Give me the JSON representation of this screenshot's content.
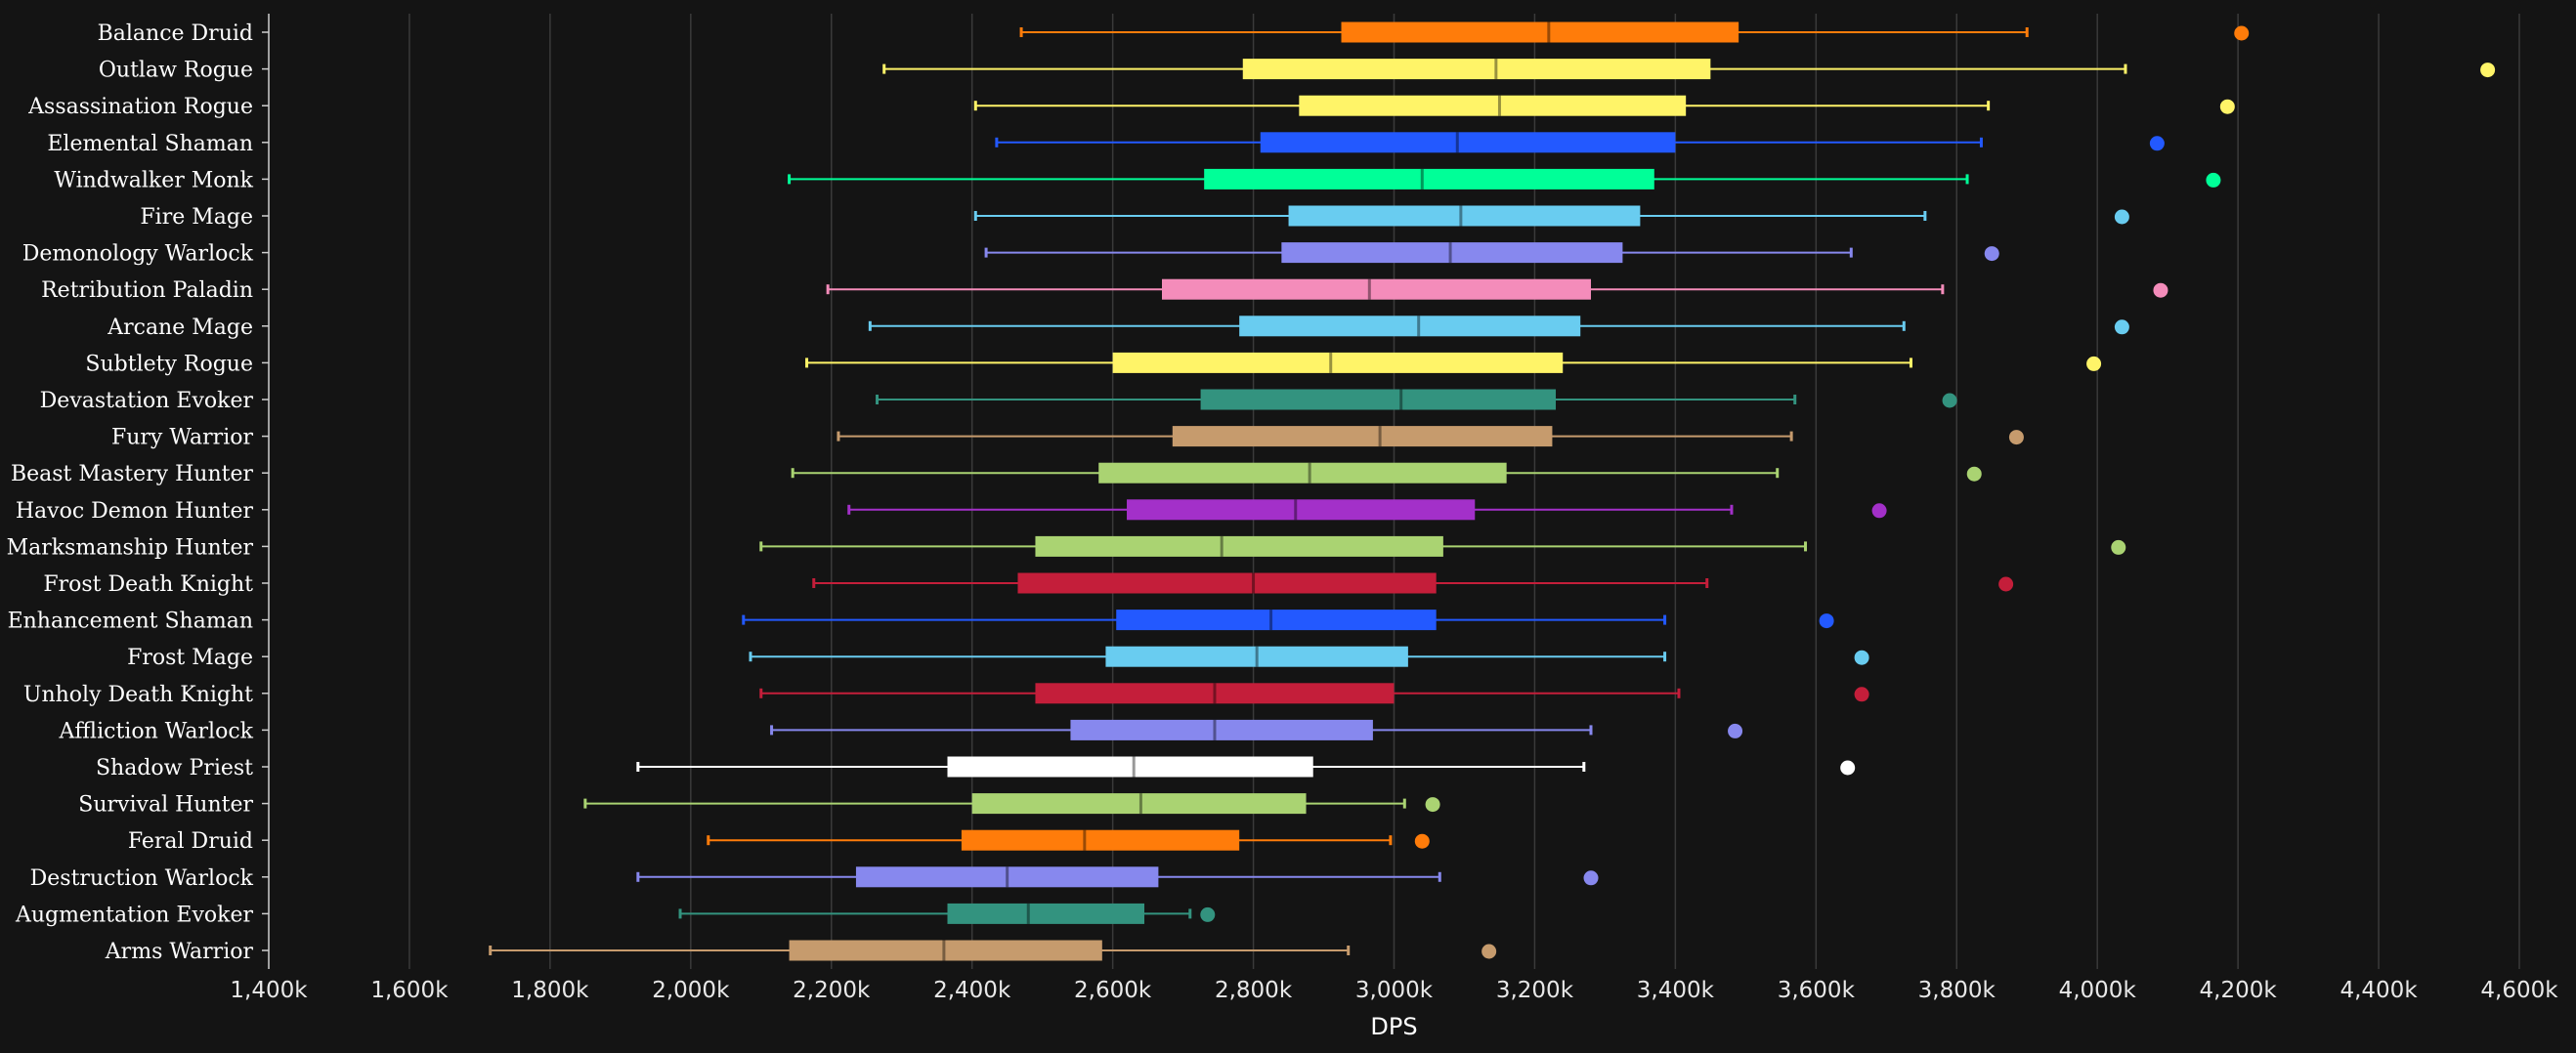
{
  "chart_data": {
    "type": "boxplot",
    "xlabel": "DPS",
    "xlim": [
      1400000,
      4600000
    ],
    "xticks": [
      "1,400k",
      "1,600k",
      "1,800k",
      "2,000k",
      "2,200k",
      "2,400k",
      "2,600k",
      "2,800k",
      "3,000k",
      "3,200k",
      "3,400k",
      "3,600k",
      "3,800k",
      "4,000k",
      "4,200k",
      "4,400k",
      "4,600k"
    ],
    "xtick_values": [
      1400000,
      1600000,
      1800000,
      2000000,
      2200000,
      2400000,
      2600000,
      2800000,
      3000000,
      3200000,
      3400000,
      3600000,
      3800000,
      4000000,
      4200000,
      4400000,
      4600000
    ],
    "grid": "vertical",
    "series": [
      {
        "name": "Balance Druid",
        "color": "#FF7C0A",
        "min": 2470000,
        "q1": 2925000,
        "median": 3220000,
        "q3": 3490000,
        "max": 3900000,
        "outlier": 4205000
      },
      {
        "name": "Outlaw Rogue",
        "color": "#FFF468",
        "min": 2275000,
        "q1": 2785000,
        "median": 3145000,
        "q3": 3450000,
        "max": 4040000,
        "outlier": 4555000
      },
      {
        "name": "Assassination Rogue",
        "color": "#FFF468",
        "min": 2405000,
        "q1": 2865000,
        "median": 3150000,
        "q3": 3415000,
        "max": 3845000,
        "outlier": 4185000
      },
      {
        "name": "Elemental Shaman",
        "color": "#2359FF",
        "min": 2435000,
        "q1": 2810000,
        "median": 3090000,
        "q3": 3400000,
        "max": 3835000,
        "outlier": 4085000
      },
      {
        "name": "Windwalker Monk",
        "color": "#00FF98",
        "min": 2140000,
        "q1": 2730000,
        "median": 3040000,
        "q3": 3370000,
        "max": 3815000,
        "outlier": 4165000
      },
      {
        "name": "Fire Mage",
        "color": "#69CCF0",
        "min": 2405000,
        "q1": 2850000,
        "median": 3095000,
        "q3": 3350000,
        "max": 3755000,
        "outlier": 4035000
      },
      {
        "name": "Demonology Warlock",
        "color": "#8788EE",
        "min": 2420000,
        "q1": 2840000,
        "median": 3080000,
        "q3": 3325000,
        "max": 3650000,
        "outlier": 3850000
      },
      {
        "name": "Retribution Paladin",
        "color": "#F48CBA",
        "min": 2195000,
        "q1": 2670000,
        "median": 2965000,
        "q3": 3280000,
        "max": 3780000,
        "outlier": 4090000
      },
      {
        "name": "Arcane Mage",
        "color": "#69CCF0",
        "min": 2255000,
        "q1": 2780000,
        "median": 3035000,
        "q3": 3265000,
        "max": 3725000,
        "outlier": 4035000
      },
      {
        "name": "Subtlety Rogue",
        "color": "#FFF468",
        "min": 2165000,
        "q1": 2600000,
        "median": 2910000,
        "q3": 3240000,
        "max": 3735000,
        "outlier": 3995000
      },
      {
        "name": "Devastation Evoker",
        "color": "#33937F",
        "min": 2265000,
        "q1": 2725000,
        "median": 3010000,
        "q3": 3230000,
        "max": 3570000,
        "outlier": 3790000
      },
      {
        "name": "Fury Warrior",
        "color": "#C69B6D",
        "min": 2210000,
        "q1": 2685000,
        "median": 2980000,
        "q3": 3225000,
        "max": 3565000,
        "outlier": 3885000
      },
      {
        "name": "Beast Mastery Hunter",
        "color": "#AAD372",
        "min": 2145000,
        "q1": 2580000,
        "median": 2880000,
        "q3": 3160000,
        "max": 3545000,
        "outlier": 3825000
      },
      {
        "name": "Havoc Demon Hunter",
        "color": "#A330C9",
        "min": 2225000,
        "q1": 2620000,
        "median": 2860000,
        "q3": 3115000,
        "max": 3480000,
        "outlier": 3690000
      },
      {
        "name": "Marksmanship Hunter",
        "color": "#AAD372",
        "min": 2100000,
        "q1": 2490000,
        "median": 2755000,
        "q3": 3070000,
        "max": 3585000,
        "outlier": 4030000
      },
      {
        "name": "Frost Death Knight",
        "color": "#C41E3A",
        "min": 2175000,
        "q1": 2465000,
        "median": 2800000,
        "q3": 3060000,
        "max": 3445000,
        "outlier": 3870000
      },
      {
        "name": "Enhancement Shaman",
        "color": "#2359FF",
        "min": 2075000,
        "q1": 2605000,
        "median": 2825000,
        "q3": 3060000,
        "max": 3385000,
        "outlier": 3615000
      },
      {
        "name": "Frost Mage",
        "color": "#69CCF0",
        "min": 2085000,
        "q1": 2590000,
        "median": 2805000,
        "q3": 3020000,
        "max": 3385000,
        "outlier": 3665000
      },
      {
        "name": "Unholy Death Knight",
        "color": "#C41E3A",
        "min": 2100000,
        "q1": 2490000,
        "median": 2745000,
        "q3": 3000000,
        "max": 3405000,
        "outlier": 3665000
      },
      {
        "name": "Affliction Warlock",
        "color": "#8788EE",
        "min": 2115000,
        "q1": 2540000,
        "median": 2745000,
        "q3": 2970000,
        "max": 3280000,
        "outlier": 3485000
      },
      {
        "name": "Shadow Priest",
        "color": "#FFFFFF",
        "min": 1925000,
        "q1": 2365000,
        "median": 2630000,
        "q3": 2885000,
        "max": 3270000,
        "outlier": 3645000
      },
      {
        "name": "Survival Hunter",
        "color": "#AAD372",
        "min": 1850000,
        "q1": 2400000,
        "median": 2640000,
        "q3": 2875000,
        "max": 3015000,
        "outlier": 3055000
      },
      {
        "name": "Feral Druid",
        "color": "#FF7C0A",
        "min": 2025000,
        "q1": 2385000,
        "median": 2560000,
        "q3": 2780000,
        "max": 2995000,
        "outlier": 3040000
      },
      {
        "name": "Destruction Warlock",
        "color": "#8788EE",
        "min": 1925000,
        "q1": 2235000,
        "median": 2450000,
        "q3": 2665000,
        "max": 3065000,
        "outlier": 3280000
      },
      {
        "name": "Augmentation Evoker",
        "color": "#33937F",
        "min": 1985000,
        "q1": 2365000,
        "median": 2480000,
        "q3": 2645000,
        "max": 2710000,
        "outlier": 2735000
      },
      {
        "name": "Arms Warrior",
        "color": "#C69B6D",
        "min": 1715000,
        "q1": 2140000,
        "median": 2360000,
        "q3": 2585000,
        "max": 2935000,
        "outlier": 3135000
      }
    ]
  }
}
